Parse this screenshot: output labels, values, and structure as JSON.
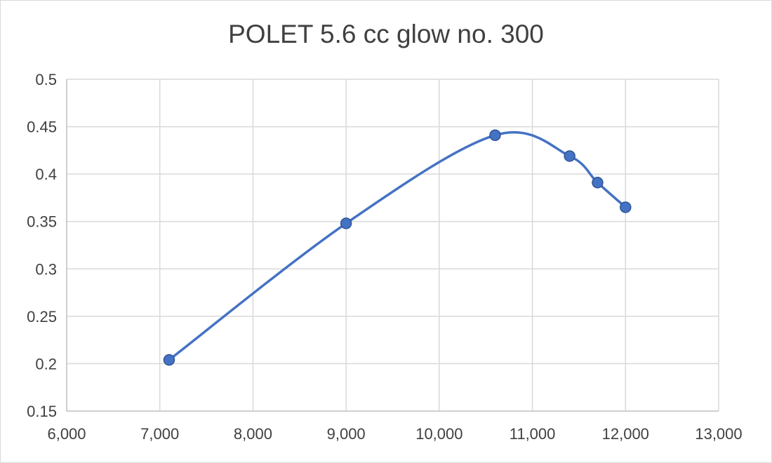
{
  "chart_data": {
    "type": "line",
    "title": "POLET 5.6 cc glow no. 300",
    "xlabel": "",
    "ylabel": "",
    "smooth": true,
    "x": [
      7100,
      9000,
      10600,
      11400,
      11700,
      12000
    ],
    "y": [
      0.204,
      0.348,
      0.441,
      0.419,
      0.391,
      0.365
    ],
    "xlim": [
      6000,
      13000
    ],
    "ylim": [
      0.15,
      0.5
    ],
    "x_ticks": [
      6000,
      7000,
      8000,
      9000,
      10000,
      11000,
      12000,
      13000
    ],
    "y_ticks": [
      0.15,
      0.2,
      0.25,
      0.3,
      0.35,
      0.4,
      0.45,
      0.5
    ],
    "x_tick_labels": [
      "6,000",
      "7,000",
      "8,000",
      "9,000",
      "10,000",
      "11,000",
      "12,000",
      "13,000"
    ],
    "y_tick_labels": [
      "0.15",
      "0.2",
      "0.25",
      "0.3",
      "0.35",
      "0.4",
      "0.45",
      "0.5"
    ],
    "grid": true,
    "legend": "none",
    "series_color": "#4472C4",
    "marker_color": "#4472C4",
    "marker_edge_color": "#2F5597",
    "grid_color": "#d9d9d9"
  }
}
